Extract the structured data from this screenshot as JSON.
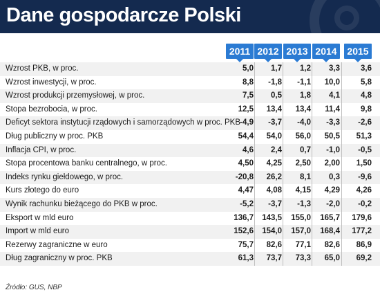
{
  "title": "Dane gospodarcze Polski",
  "source": "Źródło: GUS, NBP",
  "colors": {
    "header_bg": "#142a4f",
    "year_tag": "#2b7bd3",
    "row_alt": "#f1f1f1"
  },
  "chart_data": {
    "type": "table",
    "title": "Dane gospodarcze Polski",
    "columns": [
      "2011",
      "2012",
      "2013",
      "2014",
      "2015"
    ],
    "rows": [
      {
        "label": "Wzrost PKB, w proc.",
        "values": [
          "5,0",
          "1,7",
          "1,2",
          "3,3",
          "3,6"
        ]
      },
      {
        "label": "Wzrost inwestycji, w proc.",
        "values": [
          "8,8",
          "-1,8",
          "-1,1",
          "10,0",
          "5,8"
        ]
      },
      {
        "label": "Wzrost produkcji przemysłowej, w proc.",
        "values": [
          "7,5",
          "0,5",
          "1,8",
          "4,1",
          "4,8"
        ]
      },
      {
        "label": "Stopa bezrobocia, w proc.",
        "values": [
          "12,5",
          "13,4",
          "13,4",
          "11,4",
          "9,8"
        ]
      },
      {
        "label": "Deficyt sektora instytucji rządowych i samorządowych w proc. PKB",
        "values": [
          "-4,9",
          "-3,7",
          "-4,0",
          "-3,3",
          "-2,6"
        ]
      },
      {
        "label": "Dług publiczny w proc. PKB",
        "values": [
          "54,4",
          "54,0",
          "56,0",
          "50,5",
          "51,3"
        ]
      },
      {
        "label": "Inflacja CPI, w proc.",
        "values": [
          "4,6",
          "2,4",
          "0,7",
          "-1,0",
          "-0,5"
        ]
      },
      {
        "label": "Stopa procentowa banku centralnego, w proc.",
        "values": [
          "4,50",
          "4,25",
          "2,50",
          "2,00",
          "1,50"
        ]
      },
      {
        "label": "Indeks rynku giełdowego, w proc.",
        "values": [
          "-20,8",
          "26,2",
          "8,1",
          "0,3",
          "-9,6"
        ]
      },
      {
        "label": "Kurs złotego do euro",
        "values": [
          "4,47",
          "4,08",
          "4,15",
          "4,29",
          "4,26"
        ]
      },
      {
        "label": "Wynik rachunku bieżącego do PKB w proc.",
        "values": [
          "-5,2",
          "-3,7",
          "-1,3",
          "-2,0",
          "-0,2"
        ]
      },
      {
        "label": "Eksport w mld euro",
        "values": [
          "136,7",
          "143,5",
          "155,0",
          "165,7",
          "179,6"
        ]
      },
      {
        "label": "Import w mld euro",
        "values": [
          "152,6",
          "154,0",
          "157,0",
          "168,4",
          "177,2"
        ]
      },
      {
        "label": "Rezerwy zagraniczne w euro",
        "values": [
          "75,7",
          "82,6",
          "77,1",
          "82,6",
          "86,9"
        ]
      },
      {
        "label": "Dług zagraniczny w proc. PKB",
        "values": [
          "61,3",
          "73,7",
          "73,3",
          "65,0",
          "69,2"
        ]
      }
    ]
  }
}
